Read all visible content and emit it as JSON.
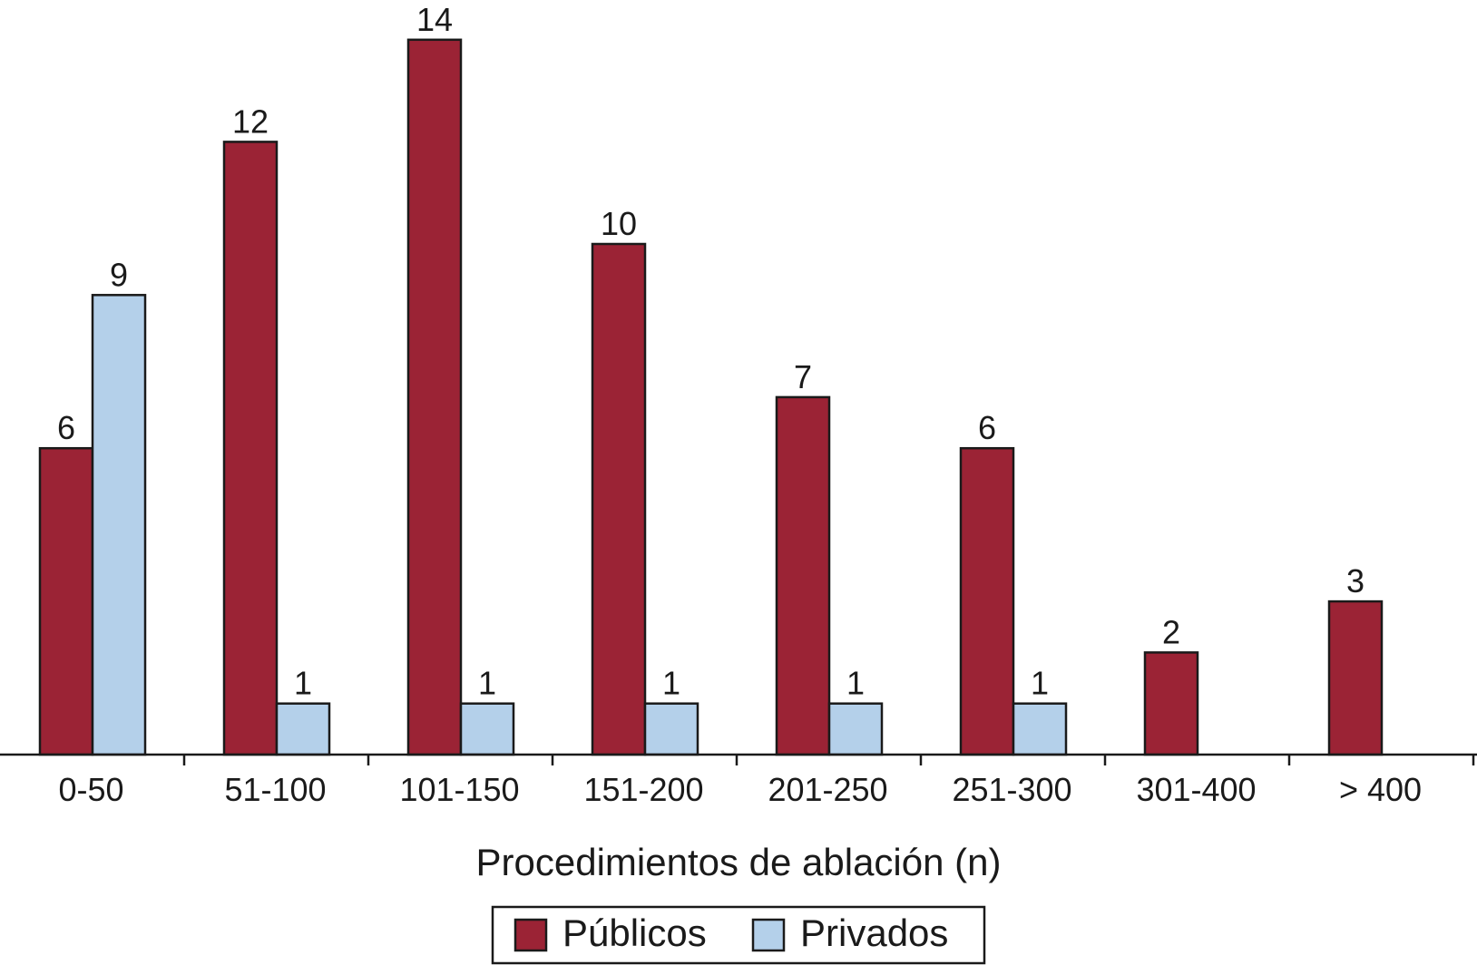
{
  "chart_data": {
    "type": "bar",
    "categories": [
      "0-50",
      "51-100",
      "101-150",
      "151-200",
      "201-250",
      "251-300",
      "301-400",
      "> 400"
    ],
    "series": [
      {
        "name": "Públicos",
        "values": [
          6,
          12,
          14,
          10,
          7,
          6,
          2,
          3
        ],
        "color": "#9b2335"
      },
      {
        "name": "Privados",
        "values": [
          9,
          1,
          1,
          1,
          1,
          1,
          0,
          0
        ],
        "color": "#b4d0ea"
      }
    ],
    "title": "",
    "xlabel": "Procedimientos de ablación (n)",
    "ylabel": "",
    "ylim": [
      0,
      14
    ],
    "grid": false,
    "legend": "bottom-center",
    "data_labels": true
  }
}
